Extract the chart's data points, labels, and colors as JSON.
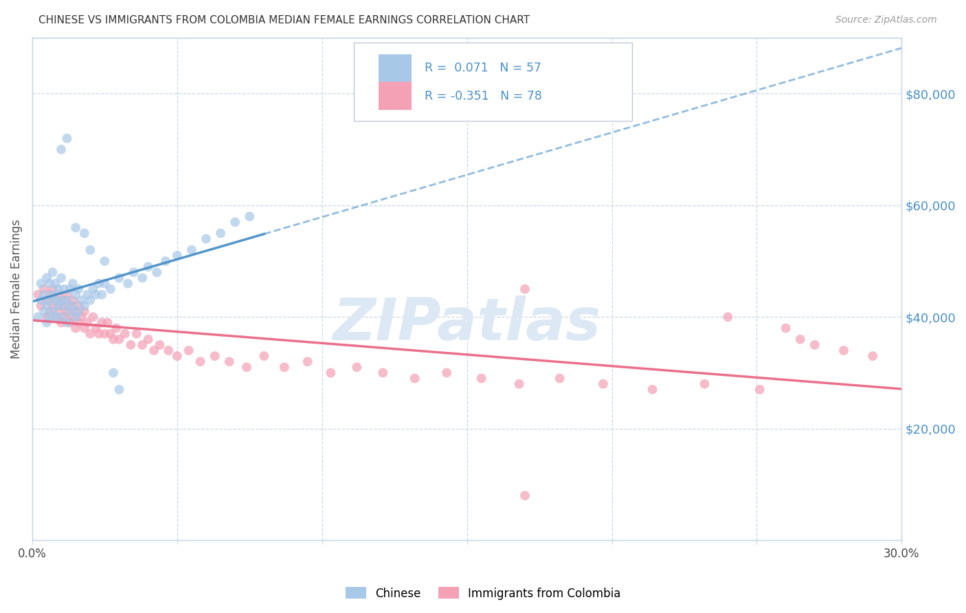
{
  "title": "CHINESE VS IMMIGRANTS FROM COLOMBIA MEDIAN FEMALE EARNINGS CORRELATION CHART",
  "source": "Source: ZipAtlas.com",
  "ylabel": "Median Female Earnings",
  "y_tick_values": [
    20000,
    40000,
    60000,
    80000
  ],
  "xlim": [
    0.0,
    0.3
  ],
  "ylim": [
    0,
    90000
  ],
  "chinese_color": "#a8c8e8",
  "colombia_color": "#f4a0b5",
  "chinese_line_color": "#4a90c8",
  "colombia_line_color": "#e86080",
  "watermark_color": "#dde8f5",
  "chinese_R": 0.071,
  "chinese_N": 57,
  "colombia_R": -0.351,
  "colombia_N": 78,
  "watermark": "ZIPatlas",
  "background_color": "#ffffff",
  "grid_color": "#c8d8e8",
  "chinese_scatter_x": [
    0.002,
    0.003,
    0.003,
    0.004,
    0.004,
    0.005,
    0.005,
    0.005,
    0.006,
    0.006,
    0.006,
    0.007,
    0.007,
    0.007,
    0.008,
    0.008,
    0.008,
    0.009,
    0.009,
    0.01,
    0.01,
    0.01,
    0.011,
    0.011,
    0.012,
    0.012,
    0.013,
    0.013,
    0.014,
    0.014,
    0.015,
    0.015,
    0.016,
    0.016,
    0.017,
    0.018,
    0.019,
    0.02,
    0.021,
    0.022,
    0.023,
    0.024,
    0.025,
    0.027,
    0.03,
    0.033,
    0.035,
    0.038,
    0.04,
    0.043,
    0.046,
    0.05,
    0.055,
    0.06,
    0.065,
    0.07,
    0.075
  ],
  "chinese_scatter_y": [
    40000,
    43000,
    46000,
    41000,
    44000,
    39000,
    42000,
    47000,
    40000,
    43000,
    46000,
    41000,
    44000,
    48000,
    40000,
    43000,
    46000,
    42000,
    45000,
    40000,
    43000,
    47000,
    42000,
    45000,
    39000,
    43000,
    41000,
    45000,
    42000,
    46000,
    40000,
    44000,
    41000,
    45000,
    43000,
    42000,
    44000,
    43000,
    45000,
    44000,
    46000,
    44000,
    46000,
    45000,
    47000,
    46000,
    48000,
    47000,
    49000,
    48000,
    50000,
    51000,
    52000,
    54000,
    55000,
    57000,
    58000
  ],
  "chinese_outlier_x": [
    0.01,
    0.012,
    0.015,
    0.018,
    0.02,
    0.025,
    0.028,
    0.03
  ],
  "chinese_outlier_y": [
    70000,
    72000,
    56000,
    55000,
    52000,
    50000,
    30000,
    27000
  ],
  "colombia_scatter_x": [
    0.002,
    0.003,
    0.004,
    0.005,
    0.005,
    0.006,
    0.006,
    0.007,
    0.007,
    0.008,
    0.008,
    0.009,
    0.009,
    0.01,
    0.01,
    0.011,
    0.011,
    0.012,
    0.012,
    0.013,
    0.013,
    0.014,
    0.014,
    0.015,
    0.015,
    0.016,
    0.016,
    0.017,
    0.018,
    0.018,
    0.019,
    0.02,
    0.021,
    0.022,
    0.023,
    0.024,
    0.025,
    0.026,
    0.027,
    0.028,
    0.029,
    0.03,
    0.032,
    0.034,
    0.036,
    0.038,
    0.04,
    0.042,
    0.044,
    0.047,
    0.05,
    0.054,
    0.058,
    0.063,
    0.068,
    0.074,
    0.08,
    0.087,
    0.095,
    0.103,
    0.112,
    0.121,
    0.132,
    0.143,
    0.155,
    0.168,
    0.182,
    0.197,
    0.214,
    0.232,
    0.251,
    0.17,
    0.24,
    0.26,
    0.265,
    0.27,
    0.28,
    0.29
  ],
  "colombia_scatter_y": [
    44000,
    42000,
    45000,
    40000,
    43000,
    41000,
    44000,
    42000,
    45000,
    40000,
    43000,
    41000,
    44000,
    39000,
    42000,
    40000,
    43000,
    41000,
    44000,
    39000,
    42000,
    40000,
    43000,
    38000,
    41000,
    39000,
    42000,
    40000,
    38000,
    41000,
    39000,
    37000,
    40000,
    38000,
    37000,
    39000,
    37000,
    39000,
    37000,
    36000,
    38000,
    36000,
    37000,
    35000,
    37000,
    35000,
    36000,
    34000,
    35000,
    34000,
    33000,
    34000,
    32000,
    33000,
    32000,
    31000,
    33000,
    31000,
    32000,
    30000,
    31000,
    30000,
    29000,
    30000,
    29000,
    28000,
    29000,
    28000,
    27000,
    28000,
    27000,
    45000,
    40000,
    38000,
    36000,
    35000,
    34000,
    33000
  ],
  "colombia_outlier_x": [
    0.17
  ],
  "colombia_outlier_y": [
    8000
  ]
}
